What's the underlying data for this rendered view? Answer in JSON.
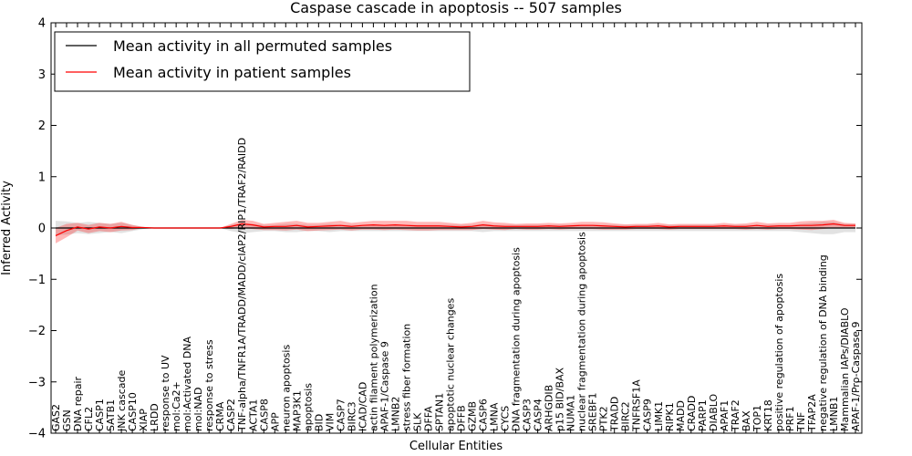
{
  "chart_data": {
    "type": "line",
    "title": "Caspase cascade in apoptosis -- 507 samples",
    "xlabel": "Cellular Entities",
    "ylabel": "Inferred Activity",
    "ylim": [
      -4,
      4
    ],
    "yticks": [
      -4,
      -3,
      -2,
      -1,
      0,
      1,
      2,
      3,
      4
    ],
    "legend_position": "top-left",
    "categories": [
      "GAS2",
      "GSN",
      "DNA repair",
      "CFL2",
      "CASP1",
      "SATB1",
      "JNK cascade",
      "CASP10",
      "XIAP",
      "LRDD",
      "response to UV",
      "mol:Ca2+",
      "mol:Activated DNA",
      "mol:NAD",
      "response to stress",
      "CRMA",
      "CASP2",
      "TNF-alpha/TNFR1A/TRADD/MADD/cIAP2/RIP1/TRAF2/RAIDD",
      "ACTA1",
      "CASP8",
      "APP",
      "neuron apoptosis",
      "MAP3K1",
      "apoptosis",
      "BID",
      "VIM",
      "CASP7",
      "BIRC3",
      "ICAD/CAD",
      "actin filament polymerization",
      "APAF-1/Caspase 9",
      "LMNB2",
      "stress fiber formation",
      "SLK",
      "DFFA",
      "SPTAN1",
      "apoptotic nuclear changes",
      "DFFB",
      "GZMB",
      "CASP6",
      "LMNA",
      "CYCS",
      "DNA fragmentation during apoptosis",
      "CASP3",
      "CASP4",
      "ARHGDIB",
      "p15 BID/BAX",
      "NUMA1",
      "nuclear fragmentation during apoptosis",
      "SREBF1",
      "PTK2",
      "TRADD",
      "BIRC2",
      "TNFRSF1A",
      "CASP9",
      "LIMK1",
      "RIPK1",
      "MADD",
      "CRADD",
      "PARP1",
      "DIABLO",
      "APAF1",
      "TRAF2",
      "BAX",
      "TOP1",
      "KRT18",
      "positive regulation of apoptosis",
      "PRF1",
      "TNF",
      "TFAP2A",
      "negative regulation of DNA binding",
      "LMNB1",
      "Mammalian IAPs/DIABLO",
      "APAF-1/Pro-Caspase 9"
    ],
    "series": [
      {
        "name": "Mean activity in all permuted samples",
        "color": "#000000",
        "values": [
          0,
          0,
          0,
          0,
          0,
          0,
          0,
          0,
          0,
          0,
          0,
          0,
          0,
          0,
          0,
          0,
          0,
          0,
          0,
          0,
          0,
          0,
          0,
          0,
          0,
          0,
          0,
          0,
          0,
          0,
          0,
          0,
          0,
          0,
          0,
          0,
          0,
          0,
          0,
          0,
          0,
          0,
          0,
          0,
          0,
          0,
          0,
          0,
          0,
          0,
          0,
          0,
          0,
          0,
          0,
          0,
          0,
          0,
          0,
          0,
          0,
          0,
          0,
          0,
          0,
          0,
          0,
          0,
          0,
          0,
          0,
          0,
          0,
          0
        ],
        "band_low": [
          -0.14,
          -0.13,
          -0.1,
          -0.12,
          -0.1,
          -0.08,
          -0.1,
          -0.06,
          -0.02,
          0,
          0,
          0,
          0,
          0,
          0,
          0,
          -0.06,
          -0.1,
          -0.08,
          -0.06,
          -0.06,
          -0.08,
          -0.08,
          -0.06,
          -0.06,
          -0.08,
          -0.06,
          -0.06,
          -0.06,
          -0.06,
          -0.06,
          -0.06,
          -0.06,
          -0.06,
          -0.06,
          -0.06,
          -0.06,
          -0.06,
          -0.06,
          -0.08,
          -0.06,
          -0.06,
          -0.06,
          -0.06,
          -0.06,
          -0.06,
          -0.06,
          -0.06,
          -0.06,
          -0.06,
          -0.06,
          -0.06,
          -0.06,
          -0.06,
          -0.06,
          -0.06,
          -0.06,
          -0.06,
          -0.06,
          -0.06,
          -0.06,
          -0.06,
          -0.06,
          -0.06,
          -0.06,
          -0.06,
          -0.06,
          -0.06,
          -0.08,
          -0.1,
          -0.12,
          -0.12,
          -0.08,
          -0.08
        ],
        "band_high": [
          0.14,
          0.13,
          0.1,
          0.12,
          0.1,
          0.08,
          0.1,
          0.06,
          0.02,
          0,
          0,
          0,
          0,
          0,
          0,
          0,
          0.06,
          0.1,
          0.08,
          0.06,
          0.06,
          0.08,
          0.08,
          0.06,
          0.06,
          0.08,
          0.06,
          0.06,
          0.06,
          0.06,
          0.06,
          0.06,
          0.06,
          0.06,
          0.06,
          0.06,
          0.06,
          0.06,
          0.06,
          0.08,
          0.06,
          0.06,
          0.06,
          0.06,
          0.06,
          0.06,
          0.06,
          0.06,
          0.06,
          0.06,
          0.06,
          0.06,
          0.06,
          0.06,
          0.06,
          0.06,
          0.06,
          0.06,
          0.06,
          0.06,
          0.06,
          0.06,
          0.06,
          0.06,
          0.06,
          0.06,
          0.06,
          0.06,
          0.08,
          0.1,
          0.12,
          0.12,
          0.08,
          0.08
        ]
      },
      {
        "name": "Mean activity in patient samples",
        "color": "#ff0000",
        "values": [
          -0.15,
          -0.05,
          0.02,
          -0.02,
          0.02,
          0,
          0.03,
          0.01,
          0.01,
          0,
          0,
          0,
          0,
          0,
          0,
          0,
          0.03,
          0.08,
          0.06,
          0.02,
          0.03,
          0.03,
          0.05,
          0.02,
          0.03,
          0.04,
          0.05,
          0.03,
          0.05,
          0.06,
          0.05,
          0.06,
          0.05,
          0.04,
          0.04,
          0.04,
          0.03,
          0.02,
          0.03,
          0.06,
          0.04,
          0.03,
          0.03,
          0.03,
          0.03,
          0.04,
          0.03,
          0.04,
          0.05,
          0.05,
          0.04,
          0.03,
          0.02,
          0.03,
          0.03,
          0.04,
          0.02,
          0.03,
          0.03,
          0.03,
          0.03,
          0.04,
          0.03,
          0.03,
          0.05,
          0.03,
          0.04,
          0.04,
          0.05,
          0.05,
          0.06,
          0.08,
          0.05,
          0.05
        ],
        "band_low": [
          -0.3,
          -0.18,
          -0.05,
          -0.1,
          -0.06,
          -0.08,
          -0.05,
          -0.04,
          0,
          0,
          0,
          0,
          0,
          0,
          0,
          0,
          -0.02,
          0,
          -0.02,
          -0.04,
          -0.04,
          -0.05,
          -0.03,
          -0.06,
          -0.05,
          -0.04,
          -0.03,
          -0.05,
          -0.03,
          -0.03,
          -0.04,
          -0.03,
          -0.04,
          -0.05,
          -0.05,
          -0.04,
          -0.04,
          -0.04,
          -0.04,
          -0.02,
          -0.03,
          -0.04,
          -0.02,
          -0.03,
          -0.03,
          -0.02,
          -0.03,
          -0.02,
          -0.02,
          -0.02,
          -0.03,
          -0.03,
          -0.03,
          -0.02,
          -0.02,
          -0.02,
          -0.03,
          -0.02,
          -0.02,
          -0.02,
          -0.02,
          -0.02,
          -0.02,
          -0.03,
          -0.02,
          -0.03,
          -0.02,
          -0.02,
          -0.03,
          -0.04,
          -0.02,
          0,
          0,
          0.01
        ],
        "band_high": [
          0,
          0.08,
          0.1,
          0.06,
          0.1,
          0.08,
          0.12,
          0.06,
          0.02,
          0,
          0,
          0,
          0,
          0,
          0,
          0,
          0.08,
          0.16,
          0.14,
          0.08,
          0.1,
          0.12,
          0.14,
          0.1,
          0.1,
          0.12,
          0.14,
          0.1,
          0.12,
          0.14,
          0.14,
          0.14,
          0.14,
          0.12,
          0.12,
          0.12,
          0.1,
          0.08,
          0.1,
          0.14,
          0.11,
          0.1,
          0.08,
          0.09,
          0.09,
          0.1,
          0.09,
          0.1,
          0.12,
          0.12,
          0.11,
          0.09,
          0.07,
          0.08,
          0.08,
          0.1,
          0.07,
          0.08,
          0.08,
          0.08,
          0.08,
          0.1,
          0.08,
          0.09,
          0.12,
          0.09,
          0.1,
          0.1,
          0.13,
          0.14,
          0.14,
          0.16,
          0.1,
          0.09
        ]
      }
    ]
  }
}
